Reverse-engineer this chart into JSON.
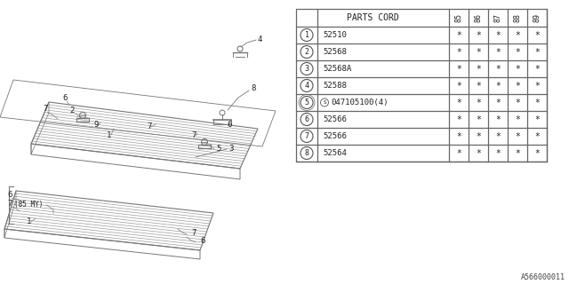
{
  "bg_color": "#ffffff",
  "parts_cord_header": "PARTS CORD",
  "year_cols": [
    "85",
    "86",
    "87",
    "88",
    "89"
  ],
  "rows": [
    {
      "num": "1",
      "code": "52510",
      "special": false,
      "vals": [
        "*",
        "*",
        "*",
        "*",
        "*"
      ]
    },
    {
      "num": "2",
      "code": "52568",
      "special": false,
      "vals": [
        "*",
        "*",
        "*",
        "*",
        "*"
      ]
    },
    {
      "num": "3",
      "code": "52568A",
      "special": false,
      "vals": [
        "*",
        "*",
        "*",
        "*",
        "*"
      ]
    },
    {
      "num": "4",
      "code": "52588",
      "special": false,
      "vals": [
        "*",
        "*",
        "*",
        "*",
        "*"
      ]
    },
    {
      "num": "5",
      "code": "047105100(4)",
      "special": true,
      "vals": [
        "*",
        "*",
        "*",
        "*",
        "*"
      ]
    },
    {
      "num": "6",
      "code": "52566",
      "special": false,
      "vals": [
        "*",
        "*",
        "*",
        "*",
        "*"
      ]
    },
    {
      "num": "7",
      "code": "52566",
      "special": false,
      "vals": [
        "*",
        "*",
        "*",
        "*",
        "*"
      ]
    },
    {
      "num": "8",
      "code": "52564",
      "special": false,
      "vals": [
        "*",
        "*",
        "*",
        "*",
        "*"
      ]
    }
  ],
  "footer_text": "A566000011",
  "lc": "#777777",
  "tc": "#222222"
}
